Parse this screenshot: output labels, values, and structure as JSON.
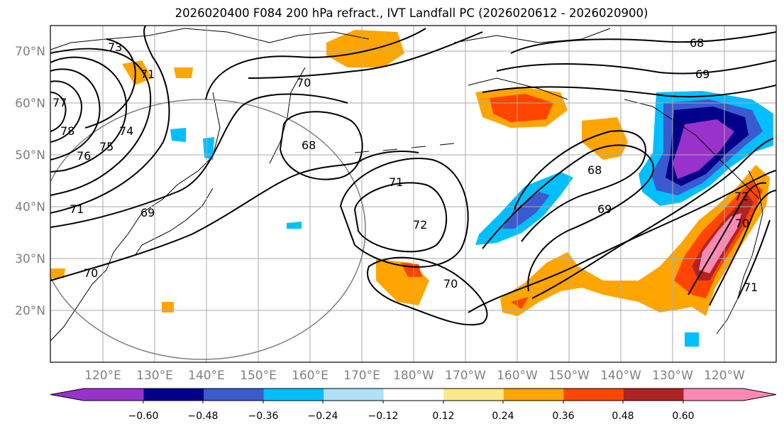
{
  "title": "2026020400 F084 200 hPa refract., IVT Landfall PC (2026020612 - 2026020900)",
  "map": {
    "lat_labels": [
      "70°N",
      "60°N",
      "50°N",
      "40°N",
      "30°N",
      "20°N"
    ],
    "lon_labels": [
      "120°E",
      "130°E",
      "140°E",
      "150°E",
      "160°E",
      "170°E",
      "180°W",
      "170°W",
      "160°W",
      "150°W",
      "140°W",
      "130°W",
      "120°W"
    ],
    "contour_labels": [
      "77",
      "78",
      "76",
      "75",
      "74",
      "73",
      "71",
      "71",
      "69",
      "70",
      "70",
      "68",
      "71",
      "72",
      "70",
      "68",
      "69",
      "68",
      "69",
      "72",
      "70",
      "71"
    ]
  },
  "colorbar": {
    "colors": [
      "#9932cc",
      "#00008b",
      "#3a5bcf",
      "#00bfff",
      "#b0e0fa",
      "#ffffff",
      "#ffe88a",
      "#ffa500",
      "#ff4500",
      "#b22222",
      "#ff89b4"
    ],
    "ticks": [
      "−0.60",
      "−0.48",
      "−0.36",
      "−0.24",
      "−0.12",
      "0.12",
      "0.24",
      "0.36",
      "0.48",
      "0.60"
    ]
  }
}
